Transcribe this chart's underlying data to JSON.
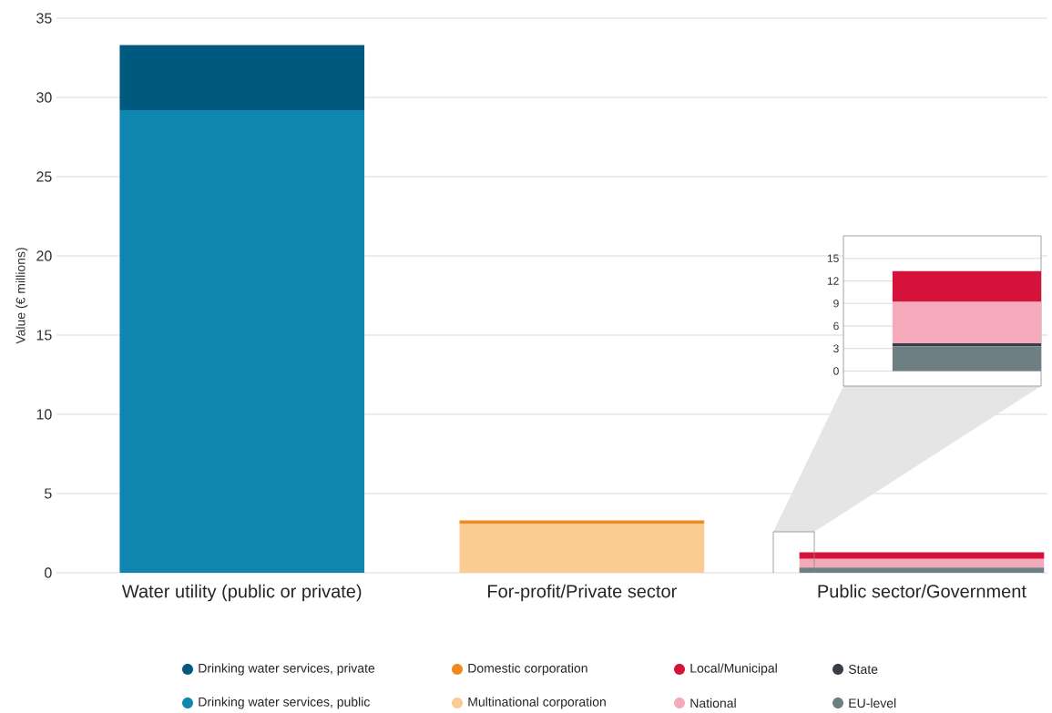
{
  "chart_data": [
    {
      "type": "bar",
      "stacked": true,
      "ylabel": "Value (€ millions)",
      "categories": [
        "Water utility (public or private)",
        "For-profit/Private sector",
        "Public sector/Government"
      ],
      "ylim": [
        0,
        35
      ],
      "yticks": [
        0,
        5,
        10,
        15,
        20,
        25,
        30,
        35
      ],
      "grid": "y",
      "legend": "bottom",
      "series": [
        {
          "name": "Drinking water services, public",
          "color": "#0e86b0",
          "values": [
            29.2,
            null,
            null
          ]
        },
        {
          "name": "Drinking water services, private",
          "color": "#005a80",
          "values": [
            4.1,
            null,
            null
          ]
        },
        {
          "name": "Multinational corporation",
          "color": "#fbcb94",
          "values": [
            null,
            3.1,
            null
          ]
        },
        {
          "name": "Domestic corporation",
          "color": "#f08a1e",
          "values": [
            null,
            0.2,
            null
          ]
        },
        {
          "name": "EU-level",
          "color": "#6e7f83",
          "values": [
            null,
            null,
            0.33
          ]
        },
        {
          "name": "State",
          "color": "#383e44",
          "values": [
            null,
            null,
            null
          ]
        },
        {
          "name": "National",
          "color": "#f5aabb",
          "values": [
            null,
            null,
            0.55
          ]
        },
        {
          "name": "Local/Municipal",
          "color": "#d5133a",
          "values": [
            null,
            null,
            0.41
          ]
        }
      ]
    },
    {
      "type": "bar",
      "stacked": true,
      "categories": [
        null
      ],
      "ylim": [
        -2,
        18
      ],
      "yticks": [
        0,
        3,
        6,
        9,
        12,
        15
      ],
      "grid": "y",
      "series": [
        {
          "color": "#6e7f83",
          "values": [
            3.3
          ]
        },
        {
          "color": "#383e44",
          "values": [
            0.4
          ]
        },
        {
          "color": "#f5aabb",
          "values": [
            5.5
          ]
        },
        {
          "color": "#d5133a",
          "values": [
            4.1
          ]
        }
      ]
    }
  ]
}
